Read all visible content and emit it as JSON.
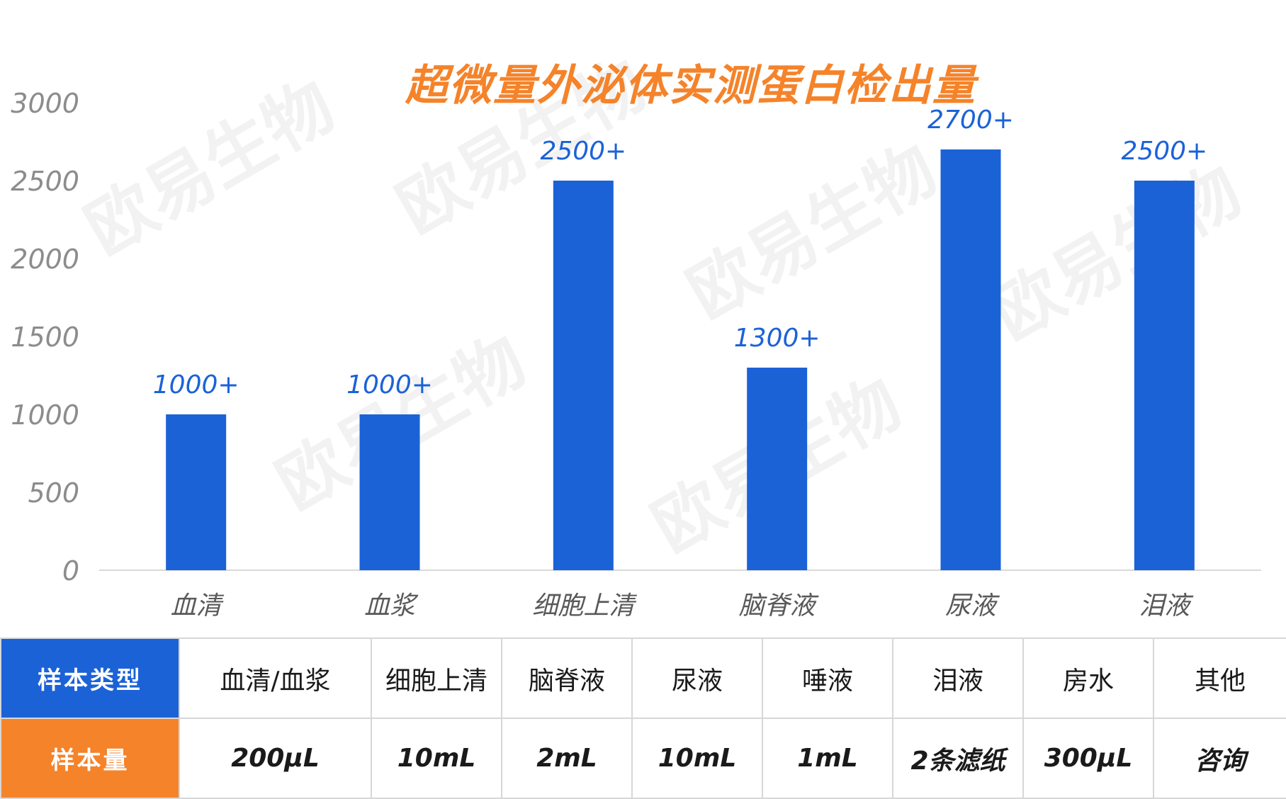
{
  "title": "超微量外泌体实测蛋白检出量",
  "watermark": "欧易生物",
  "colors": {
    "bar": "#1b62d7",
    "title": "#f5832a",
    "label": "#1b62d7",
    "table_head_type": "#1b62d7",
    "table_head_amount": "#f5832a"
  },
  "chart_data": {
    "type": "bar",
    "title": "超微量外泌体实测蛋白检出量",
    "categories": [
      "血清",
      "血浆",
      "细胞上清",
      "脑脊液",
      "尿液",
      "泪液"
    ],
    "values": [
      1000,
      1000,
      2500,
      1300,
      2700,
      2500
    ],
    "data_labels": [
      "1000+",
      "1000+",
      "2500+",
      "1300+",
      "2700+",
      "2500+"
    ],
    "yticks": [
      0,
      500,
      1000,
      1500,
      2000,
      2500,
      3000
    ],
    "ylim": [
      0,
      3000
    ],
    "xlabel": "",
    "ylabel": "",
    "grid": false,
    "legend": false
  },
  "table": {
    "type_header": "样本类型",
    "amount_header": "样本量",
    "types": [
      "血清/血浆",
      "细胞上清",
      "脑脊液",
      "尿液",
      "唾液",
      "泪液",
      "房水",
      "其他"
    ],
    "amounts": [
      "200μL",
      "10mL",
      "2mL",
      "10mL",
      "1mL",
      "2条滤纸",
      "300μL",
      "咨询"
    ]
  }
}
